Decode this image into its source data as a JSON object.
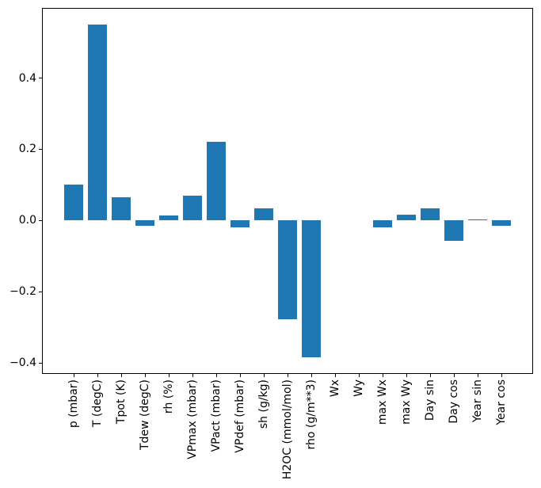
{
  "chart_data": {
    "type": "bar",
    "title": "",
    "xlabel": "",
    "ylabel": "",
    "categories": [
      "p (mbar)",
      "T (degC)",
      "Tpot (K)",
      "Tdew (degC)",
      "rh (%)",
      "VPmax (mbar)",
      "VPact (mbar)",
      "VPdef (mbar)",
      "sh (g/kg)",
      "H2OC (mmol/mol)",
      "rho (g/m**3)",
      "Wx",
      "Wy",
      "max Wx",
      "max Wy",
      "Day sin",
      "Day cos",
      "Year sin",
      "Year cos"
    ],
    "values": [
      0.1,
      0.55,
      0.066,
      -0.014,
      0.014,
      0.069,
      0.22,
      -0.02,
      0.035,
      -0.277,
      -0.385,
      0.0,
      0.0,
      -0.02,
      0.016,
      0.035,
      -0.058,
      0.004,
      -0.015
    ],
    "y_tick_labels": [
      "0.4",
      "0.2",
      "0.0",
      "−0.2",
      "−0.4"
    ],
    "y_tick_values": [
      0.4,
      0.2,
      0.0,
      -0.2,
      -0.4
    ],
    "ylim": [
      -0.431,
      0.597
    ],
    "grid": false,
    "legend": null,
    "bar_color": "#1f77b4",
    "axis_color": "#000000",
    "background_color": "#ffffff",
    "x_tick_rotation_deg": 90
  }
}
